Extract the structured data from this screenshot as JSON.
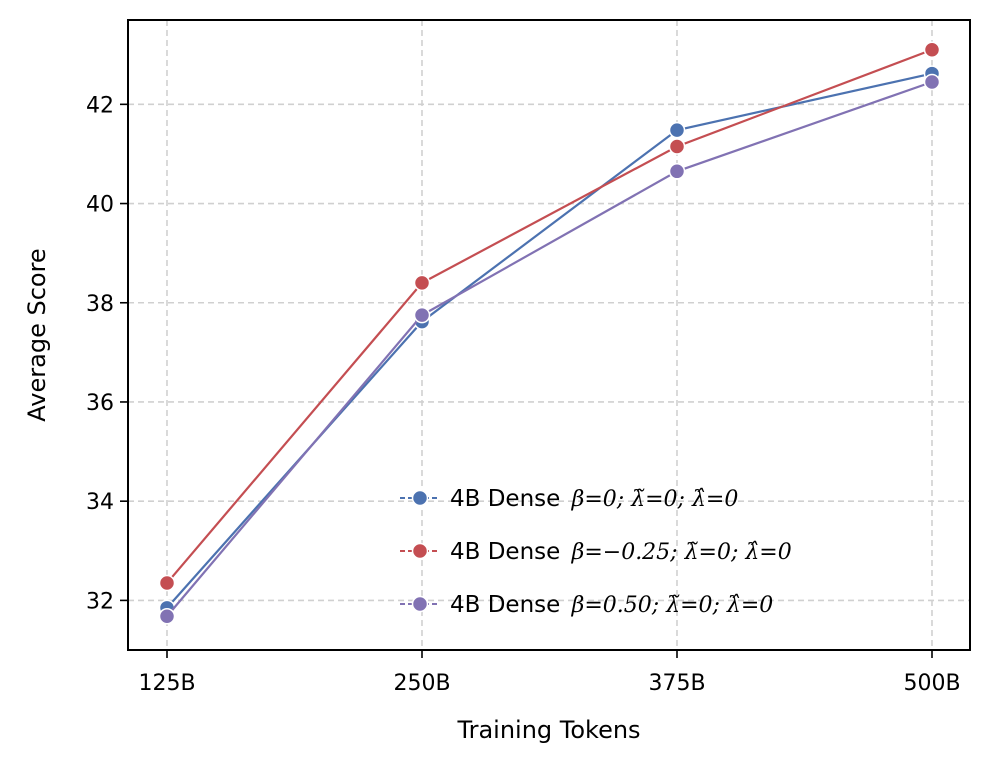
{
  "chart_data": {
    "type": "line",
    "xlabel": "Training Tokens",
    "ylabel": "Average Score",
    "categories": [
      "125B",
      "250B",
      "375B",
      "500B"
    ],
    "ylim": [
      31.0,
      43.7
    ],
    "yticks": [
      32,
      34,
      36,
      38,
      40,
      42
    ],
    "grid": true,
    "legend_position": "lower-right",
    "series": [
      {
        "name": "4B Dense",
        "name_math": "β=0;  λ̃=0;  λ̂=0",
        "color": "#4C72B0",
        "values": [
          31.85,
          37.62,
          41.48,
          42.62
        ]
      },
      {
        "name": "4B Dense",
        "name_math": "β=−0.25;  λ̃=0;  λ̂=0",
        "color": "#C44E52",
        "values": [
          32.35,
          38.4,
          41.15,
          43.1
        ]
      },
      {
        "name": "4B Dense",
        "name_math": "β=0.50;  λ̃=0;  λ̂=0",
        "color": "#8172B3",
        "values": [
          31.68,
          37.75,
          40.65,
          42.45
        ]
      }
    ]
  }
}
